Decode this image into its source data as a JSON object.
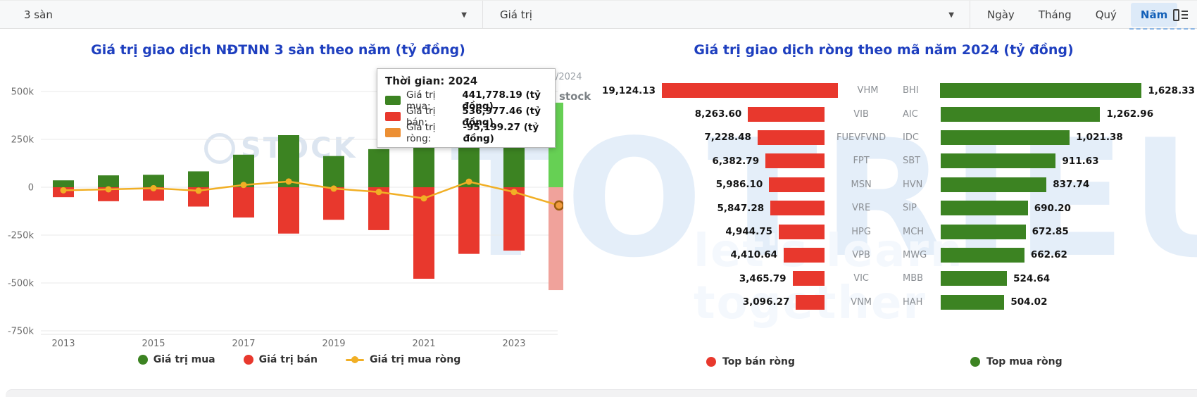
{
  "toolbar": {
    "exchange_select": "3 sàn",
    "metric_select": "Giá trị",
    "period_buttons": [
      "Ngày",
      "Tháng",
      "Quý",
      "Năm"
    ],
    "period_button_ids": [
      "day",
      "month",
      "quarter",
      "year"
    ],
    "active_period": "Năm"
  },
  "left_chart": {
    "title": "Giá trị giao dịch NĐTNN 3 sàn theo năm (tỷ đồng)",
    "legend": [
      {
        "label": "Giá trị mua",
        "marker": "dot",
        "color": "#3c8322"
      },
      {
        "label": "Giá trị bán",
        "marker": "dot",
        "color": "#e8382d"
      },
      {
        "label": "Giá trị mua ròng",
        "marker": "line-dot",
        "color": "#f1af25"
      }
    ],
    "tooltip": {
      "title": "Thời gian: 2024",
      "rows": [
        {
          "label": "Giá trị mua:",
          "value": "441,778.19 (tỷ đồng)",
          "color": "#3c8322"
        },
        {
          "label": "Giá trị bán:",
          "value": "536,977.46 (tỷ đồng)",
          "color": "#e8382d"
        },
        {
          "label": "Giá trị ròng:",
          "value": "-95,199.27 (tỷ đồng)",
          "color": "#ec8f33"
        }
      ]
    },
    "watermark_fragments": [
      "/2024",
      "stock"
    ]
  },
  "right_chart": {
    "title": "Giá trị giao dịch ròng theo mã năm 2024 (tỷ đồng)"
  },
  "watermark": {
    "brand": "TOTRIEU",
    "slogan": "let's learn together",
    "chart_logo_text": "STOCK"
  },
  "colors": {
    "buy_green": "#3c8322",
    "sell_red": "#e8382d",
    "net_line_yellow": "#f1af25",
    "title_blue": "#1e3fbf",
    "active_tab_blue": "#1360b8"
  },
  "chart_data": [
    {
      "type": "bar",
      "title": "Giá trị giao dịch NĐTNN 3 sàn theo năm (tỷ đồng)",
      "unit": "tỷ đồng",
      "categories": [
        "2013",
        "2014",
        "2015",
        "2016",
        "2017",
        "2018",
        "2019",
        "2020",
        "2021",
        "2022",
        "2023",
        "2024"
      ],
      "highlighted_category": "2024",
      "series": [
        {
          "name": "Giá trị mua",
          "role": "bar",
          "color": "#3c8322",
          "hover_color": "#66d054",
          "values": [
            36000,
            62000,
            65000,
            83000,
            170000,
            272000,
            163000,
            199000,
            420000,
            377000,
            306000,
            441778.19
          ]
        },
        {
          "name": "Giá trị bán",
          "role": "bar",
          "color": "#e8382d",
          "hover_color": "#f0a29b",
          "values": [
            52000,
            73000,
            70000,
            101000,
            158000,
            242000,
            170000,
            224000,
            478000,
            348000,
            331000,
            536977.46
          ]
        },
        {
          "name": "Giá trị mua ròng",
          "role": "line",
          "color": "#f1af25",
          "values": [
            -16000,
            -11000,
            -5000,
            -18000,
            12000,
            30000,
            -7000,
            -25000,
            -58000,
            29000,
            -25000,
            -95199.27
          ]
        }
      ],
      "ylim": [
        -750000,
        500000
      ],
      "ytick_values": [
        500000,
        250000,
        0,
        -250000,
        -500000,
        -750000
      ],
      "ytick_labels": [
        "500k",
        "250k",
        "0",
        "-250k",
        "-500k",
        "-750k"
      ],
      "x_tick_labels": [
        "2013",
        "2015",
        "2017",
        "2019",
        "2021",
        "2023"
      ],
      "grid": true,
      "legend_position": "bottom"
    },
    {
      "type": "bar",
      "orientation": "horizontal",
      "title": "Giá trị giao dịch ròng theo mã năm 2024 (tỷ đồng)",
      "unit": "tỷ đồng",
      "legend_position": "bottom",
      "panels": [
        {
          "name": "Top bán ròng",
          "color": "#e8382d",
          "categories": [
            "VHM",
            "VIB",
            "FUEVFVND",
            "FPT",
            "MSN",
            "VRE",
            "HPG",
            "VPB",
            "VIC",
            "VNM"
          ],
          "values": [
            19124.13,
            8263.6,
            7228.48,
            6382.79,
            5986.1,
            5847.28,
            4944.75,
            4410.64,
            3465.79,
            3096.27
          ]
        },
        {
          "name": "Top mua ròng",
          "color": "#3c8322",
          "categories": [
            "BHI",
            "AIC",
            "IDC",
            "SBT",
            "HVN",
            "SIP",
            "MCH",
            "MWG",
            "MBB",
            "HAH"
          ],
          "values": [
            1628.33,
            1262.96,
            1021.38,
            911.63,
            837.74,
            690.2,
            672.85,
            662.62,
            524.64,
            504.02
          ]
        }
      ]
    }
  ]
}
